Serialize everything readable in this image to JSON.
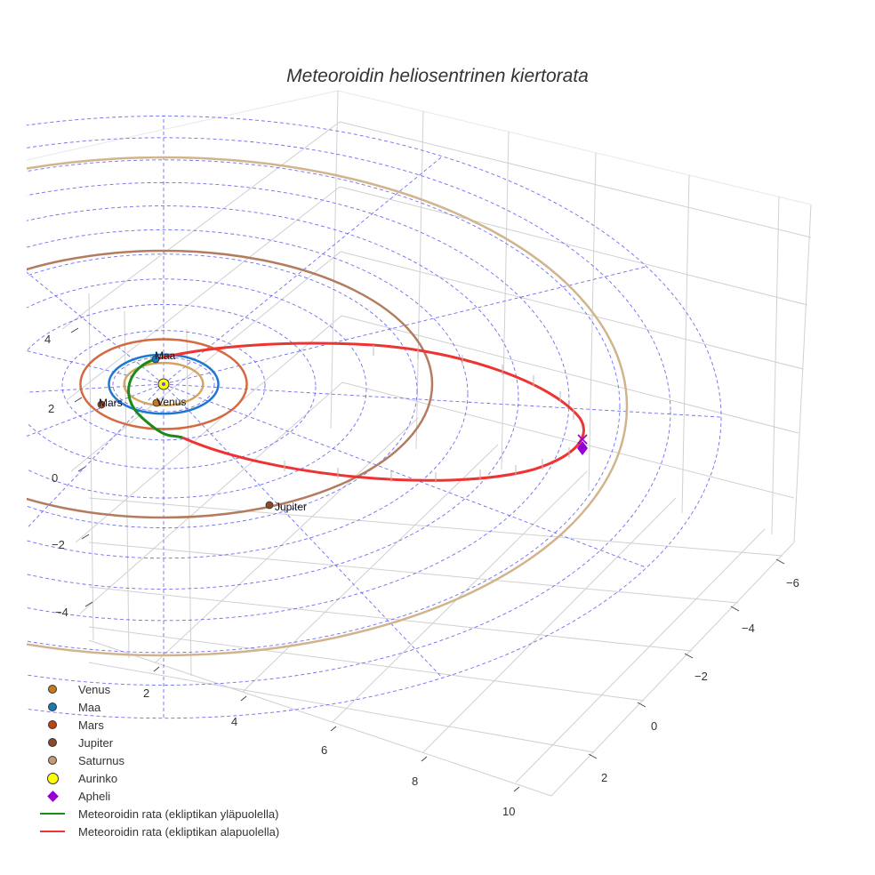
{
  "chart_data": {
    "type": "line",
    "title": "Meteoroidin heliosentrinen kiertorata",
    "axes": {
      "x": {
        "ticks": [
          "2",
          "4",
          "6",
          "8",
          "10"
        ]
      },
      "y": {
        "ticks": [
          "−6",
          "−4",
          "−2",
          "0",
          "2"
        ]
      },
      "z": {
        "ticks": [
          "4",
          "2",
          "0",
          "−2",
          "−4"
        ]
      }
    },
    "planets": [
      {
        "name": "Venus",
        "a_au": 0.72,
        "color": "#c8781e",
        "orbit_color": "#d4a45e"
      },
      {
        "name": "Maa",
        "a_au": 1.0,
        "color": "#1f77b4",
        "orbit_color": "#1f78d0"
      },
      {
        "name": "Mars",
        "a_au": 1.52,
        "color": "#c1440e",
        "orbit_color": "#d46a40"
      },
      {
        "name": "Jupiter",
        "a_au": 5.2,
        "color": "#8b4a2b",
        "orbit_color": "#b47c5e"
      },
      {
        "name": "Saturnus",
        "a_au": 9.5,
        "color": "#c49a72",
        "orbit_color": "#d2b48c"
      }
    ],
    "sun": {
      "name": "Aurinko",
      "color": "#ffff00"
    },
    "aphelion": {
      "name": "Apheli",
      "color": "#9400d3"
    },
    "meteoroid": [
      {
        "name": "Meteoroidin rata (ekliptikan yläpuolella)",
        "color": "#1a8a1a"
      },
      {
        "name": "Meteoroidin rata (ekliptikan alapuolella)",
        "color": "#ee3333"
      }
    ],
    "legend": {
      "position": "bottom-left"
    },
    "grid": true
  }
}
